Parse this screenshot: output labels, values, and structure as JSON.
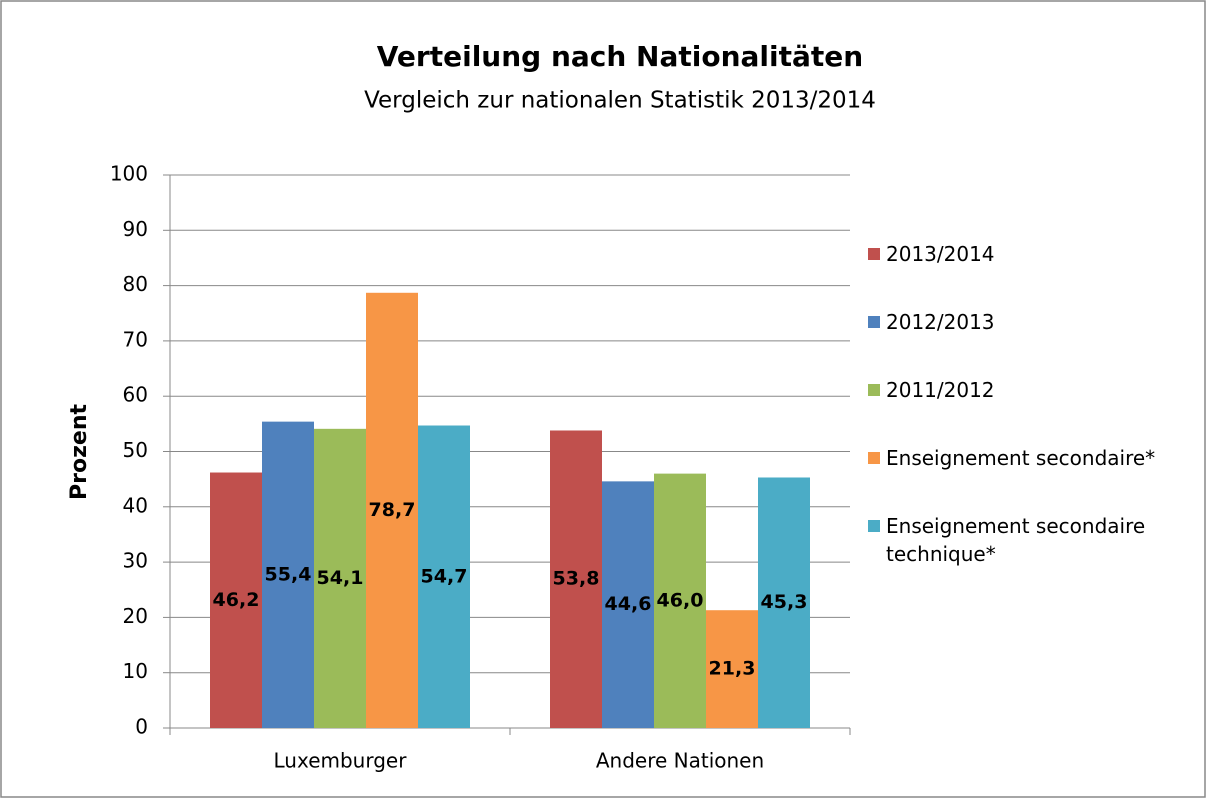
{
  "chart_data": {
    "type": "bar",
    "title": "Verteilung nach Nationalitäten",
    "subtitle": "Vergleich zur nationalen Statistik 2013/2014",
    "y_label": "Prozent",
    "categories": [
      "Luxemburger",
      "Andere Nationen"
    ],
    "series": [
      {
        "name": "2013/2014",
        "color": "#c0504d",
        "values": [
          46.2,
          53.8
        ],
        "value_labels": [
          "46,2",
          "53,8"
        ]
      },
      {
        "name": "2012/2013",
        "color": "#4f81bd",
        "values": [
          55.4,
          44.6
        ],
        "value_labels": [
          "55,4",
          "44,6"
        ]
      },
      {
        "name": "2011/2012",
        "color": "#9bbb59",
        "values": [
          54.1,
          46.0
        ],
        "value_labels": [
          "54,1",
          "46,0"
        ]
      },
      {
        "name": "Enseignement secondaire*",
        "color": "#f79646",
        "values": [
          78.7,
          21.3
        ],
        "value_labels": [
          "78,7",
          "21,3"
        ]
      },
      {
        "name": "Enseignement secondaire technique*",
        "color": "#4bacc6",
        "values": [
          54.7,
          45.3
        ],
        "value_labels": [
          "54,7",
          "45,3"
        ]
      }
    ],
    "ylim": [
      0,
      100
    ],
    "yticks": [
      0,
      10,
      20,
      30,
      40,
      50,
      60,
      70,
      80,
      90,
      100
    ],
    "grid": true,
    "legend": "right"
  }
}
